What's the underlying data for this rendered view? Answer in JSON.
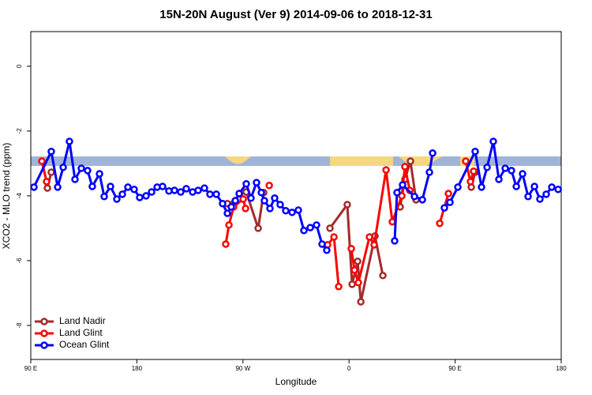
{
  "chart_data": {
    "type": "line",
    "title": "15N-20N August (Ver 9)   2014-09-06 to 2018-12-31",
    "x_label": "Longitude",
    "y_label": "XCO2 - MLO trend (ppm)",
    "xlim": [
      90,
      540
    ],
    "ylim": [
      -9.05,
      1.07
    ],
    "xticks": [
      {
        "value": 90,
        "label": "90 E"
      },
      {
        "value": 180,
        "label": "180"
      },
      {
        "value": 270,
        "label": "90 W"
      },
      {
        "value": 360,
        "label": "0"
      },
      {
        "value": 450,
        "label": "90 E"
      },
      {
        "value": 540,
        "label": "180"
      }
    ],
    "yticks": [
      -8,
      -6,
      -4,
      -2,
      0
    ],
    "legend": "bottom-left",
    "series": [
      {
        "name": "Land Nadir",
        "color": "#a52a2a",
        "x": [
          104.1,
          107.4,
          180,
          256.8,
          263.5,
          267.1,
          272.8,
          282.9,
          287.6,
          315,
          343.8,
          358.5,
          362.6,
          367.3,
          370.0,
          382.0,
          388.7,
          396,
          403.4,
          407.4,
          412.1,
          416.8,
          440,
          463.7,
          467.0
        ],
        "values": [
          -3.76,
          -3.27,
          null,
          -4.24,
          -4.15,
          -3.93,
          -3.88,
          -5.0,
          -3.9,
          null,
          -5.0,
          -4.27,
          -6.73,
          -6.02,
          -7.27,
          -5.24,
          -6.46,
          null,
          -4.34,
          -3.49,
          -2.93,
          -4.12,
          null,
          -3.73,
          -3.27
        ]
      },
      {
        "name": "Land Glint",
        "color": "#ff0000",
        "x": [
          99.4,
          103.4,
          180,
          255.4,
          258.1,
          262.1,
          270.2,
          272.2,
          282,
          292.3,
          317,
          341.8,
          347.2,
          351.2,
          356,
          361.9,
          364.6,
          367.9,
          377.3,
          381.3,
          391.4,
          396.7,
          404.8,
          407.4,
          411.5,
          424,
          436.9,
          444.3,
          451,
          459.0,
          463.0,
          465.7
        ],
        "values": [
          -2.93,
          -3.56,
          null,
          -5.49,
          -4.9,
          -4.34,
          -4.1,
          -4.39,
          null,
          -3.68,
          null,
          -5.51,
          -5.27,
          -6.8,
          null,
          -5.63,
          -6.29,
          -6.68,
          -5.27,
          -5.51,
          -3.2,
          -4.8,
          -4.0,
          -3.1,
          -3.83,
          null,
          -4.85,
          -3.93,
          null,
          -2.93,
          -3.56,
          -3.24
        ]
      },
      {
        "name": "Ocean Glint",
        "color": "#0000ff",
        "x": [
          92.7,
          107.4,
          112.8,
          117.5,
          122.8,
          127.5,
          132.9,
          138.2,
          142.2,
          148.3,
          152.3,
          157.6,
          163.0,
          167.7,
          172.4,
          177.7,
          182.4,
          187.8,
          192.5,
          197.2,
          201.8,
          207.2,
          211.9,
          217.2,
          221.9,
          227.3,
          232.0,
          237.3,
          242.0,
          247.4,
          252.7,
          256.8,
          260.1,
          263.5,
          266.8,
          272.8,
          276.8,
          281.5,
          285.6,
          288.2,
          292.9,
          296.9,
          301.6,
          306.3,
          311.7,
          317.0,
          321.7,
          327.1,
          332.4,
          337.1,
          341.1,
          370,
          398.7,
          400.7,
          405.4,
          415.5,
          422.2,
          428.2,
          430.9,
          436,
          440.9,
          445.6,
          452.3,
          467.0,
          472.4,
          477.1,
          482.4,
          487.1,
          492.5,
          497.8,
          501.9,
          507.2,
          511.9,
          517.3,
          521.9,
          527.3,
          532.0,
          537.4
        ],
        "values": [
          -3.73,
          -2.63,
          -3.73,
          -3.12,
          -2.32,
          -3.49,
          -3.15,
          -3.22,
          -3.71,
          -3.32,
          -4.02,
          -3.71,
          -4.1,
          -3.95,
          -3.73,
          -3.8,
          -4.05,
          -4.0,
          -3.88,
          -3.73,
          -3.71,
          -3.85,
          -3.83,
          -3.88,
          -3.78,
          -3.88,
          -3.83,
          -3.76,
          -3.95,
          -3.95,
          -4.24,
          -4.54,
          -4.34,
          -4.15,
          -3.93,
          -3.63,
          -4.07,
          -3.59,
          -3.9,
          -4.15,
          -4.39,
          -4.07,
          -4.27,
          -4.46,
          -4.51,
          -4.44,
          -5.07,
          -4.98,
          -4.9,
          -5.49,
          -5.68,
          null,
          -5.39,
          -3.9,
          -3.66,
          -4.02,
          -4.12,
          -3.27,
          -2.68,
          null,
          -4.37,
          -4.2,
          -3.73,
          -2.63,
          -3.73,
          -3.12,
          -2.32,
          -3.49,
          -3.15,
          -3.22,
          -3.71,
          -3.32,
          -4.02,
          -3.71,
          -4.1,
          -3.95,
          -3.73,
          -3.8
        ]
      }
    ]
  }
}
